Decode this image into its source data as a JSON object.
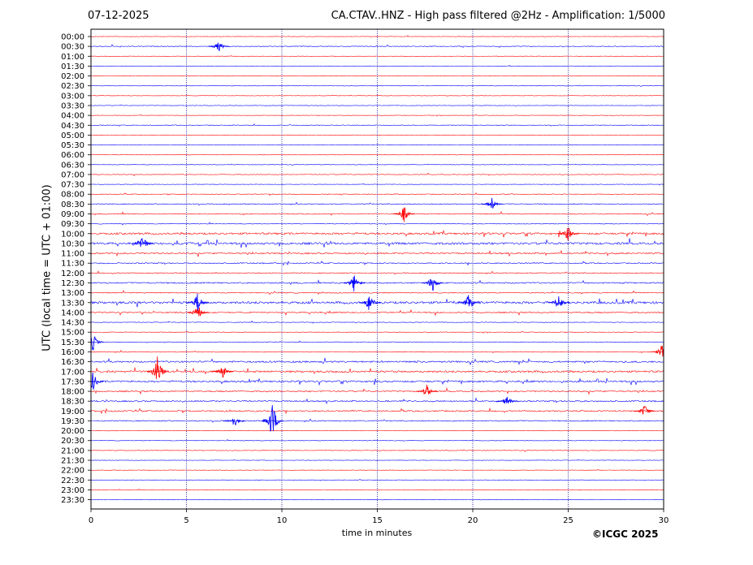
{
  "header": {
    "date": "07-12-2025",
    "title": "CA.CTAV..HNZ - High pass filtered @2Hz - Amplification: 1/5000"
  },
  "footer": {
    "copyright": "©ICGC 2025"
  },
  "colors": {
    "trace_a": "#ff0000",
    "trace_b": "#0000ff",
    "grid": "#00008b",
    "axis": "#000000"
  },
  "chart_data": {
    "type": "line",
    "subtype": "helicorder",
    "xlabel": "time in minutes",
    "ylabel": "UTC (local time = UTC + 01:00)",
    "xlim": [
      0,
      30
    ],
    "x_ticks": [
      0,
      5,
      10,
      15,
      20,
      25,
      30
    ],
    "vertical_grid_minutes": [
      5,
      10,
      15,
      20,
      25
    ],
    "grid": "vertical dotted lines at 5-minute intervals",
    "row_colors": [
      "red",
      "blue"
    ],
    "rows": [
      "00:00",
      "00:30",
      "01:00",
      "01:30",
      "02:00",
      "02:30",
      "03:00",
      "03:30",
      "04:00",
      "04:30",
      "05:00",
      "05:30",
      "06:00",
      "06:30",
      "07:00",
      "07:30",
      "08:00",
      "08:30",
      "09:00",
      "09:30",
      "10:00",
      "10:30",
      "11:00",
      "11:30",
      "12:00",
      "12:30",
      "13:00",
      "13:30",
      "14:00",
      "14:30",
      "15:00",
      "15:30",
      "16:00",
      "16:30",
      "17:00",
      "17:30",
      "18:00",
      "18:30",
      "19:00",
      "19:30",
      "20:00",
      "20:30",
      "21:00",
      "21:30",
      "22:00",
      "22:30",
      "23:00",
      "23:30"
    ],
    "activity_level": [
      0.3,
      0.6,
      0.3,
      0.3,
      0.3,
      0.3,
      0.3,
      0.3,
      0.3,
      0.5,
      0.3,
      0.3,
      0.3,
      0.3,
      0.4,
      0.3,
      0.5,
      0.7,
      0.7,
      0.5,
      1.4,
      1.6,
      1.1,
      0.8,
      0.7,
      1.0,
      0.7,
      1.7,
      1.0,
      0.4,
      0.4,
      0.4,
      0.6,
      1.2,
      1.4,
      1.3,
      1.0,
      1.0,
      1.0,
      0.8,
      0.3,
      0.4,
      0.4,
      0.3,
      0.3,
      0.3,
      0.3,
      0.3
    ],
    "events": [
      {
        "row": "00:30",
        "minute": 6.7,
        "amplitude": 0.8
      },
      {
        "row": "08:30",
        "minute": 21.0,
        "amplitude": 0.9
      },
      {
        "row": "09:00",
        "minute": 16.4,
        "amplitude": 1.2
      },
      {
        "row": "10:00",
        "minute": 25.0,
        "amplitude": 1.2
      },
      {
        "row": "10:30",
        "minute": 2.7,
        "amplitude": 1.5
      },
      {
        "row": "12:30",
        "minute": 13.8,
        "amplitude": 1.4
      },
      {
        "row": "12:30",
        "minute": 17.9,
        "amplitude": 1.3
      },
      {
        "row": "13:30",
        "minute": 5.6,
        "amplitude": 1.6
      },
      {
        "row": "13:30",
        "minute": 14.6,
        "amplitude": 1.5
      },
      {
        "row": "13:30",
        "minute": 19.8,
        "amplitude": 1.3
      },
      {
        "row": "13:30",
        "minute": 24.5,
        "amplitude": 1.3
      },
      {
        "row": "14:00",
        "minute": 5.6,
        "amplitude": 1.2
      },
      {
        "row": "15:30",
        "minute": 0.1,
        "amplitude": 1.4
      },
      {
        "row": "16:00",
        "minute": 29.9,
        "amplitude": 1.0
      },
      {
        "row": "17:00",
        "minute": 3.5,
        "amplitude": 2.5
      },
      {
        "row": "17:00",
        "minute": 6.9,
        "amplitude": 1.0
      },
      {
        "row": "17:30",
        "minute": 0.1,
        "amplitude": 1.6
      },
      {
        "row": "18:00",
        "minute": 17.6,
        "amplitude": 1.0
      },
      {
        "row": "18:30",
        "minute": 21.8,
        "amplitude": 0.8
      },
      {
        "row": "19:00",
        "minute": 29.0,
        "amplitude": 1.0
      },
      {
        "row": "19:30",
        "minute": 7.5,
        "amplitude": 0.9
      },
      {
        "row": "19:30",
        "minute": 9.5,
        "amplitude": 3.0
      }
    ]
  }
}
